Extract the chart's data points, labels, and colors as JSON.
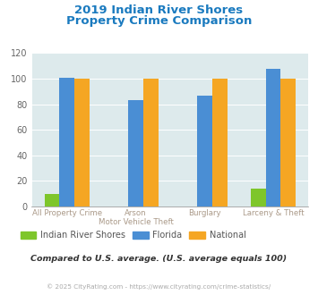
{
  "title_line1": "2019 Indian River Shores",
  "title_line2": "Property Crime Comparison",
  "title_color": "#1a7abf",
  "x_labels": [
    [
      "All Property Crime",
      ""
    ],
    [
      "Arson",
      "Motor Vehicle Theft"
    ],
    [
      "Burglary",
      ""
    ],
    [
      "Larceny & Theft",
      ""
    ]
  ],
  "indian_river_shores": [
    10,
    0,
    0,
    14
  ],
  "florida": [
    101,
    83,
    87,
    108
  ],
  "national": [
    100,
    100,
    100,
    100
  ],
  "color_irs": "#7ec62b",
  "color_florida": "#4a8ed4",
  "color_national": "#f5a623",
  "ylim": [
    0,
    120
  ],
  "yticks": [
    0,
    20,
    40,
    60,
    80,
    100,
    120
  ],
  "background_color": "#ddeaec",
  "legend_labels": [
    "Indian River Shores",
    "Florida",
    "National"
  ],
  "legend_label_color": "#555555",
  "note": "Compared to U.S. average. (U.S. average equals 100)",
  "note_color": "#333333",
  "footer": "© 2025 CityRating.com - https://www.cityrating.com/crime-statistics/",
  "footer_color": "#aaaaaa",
  "bar_width": 0.22
}
